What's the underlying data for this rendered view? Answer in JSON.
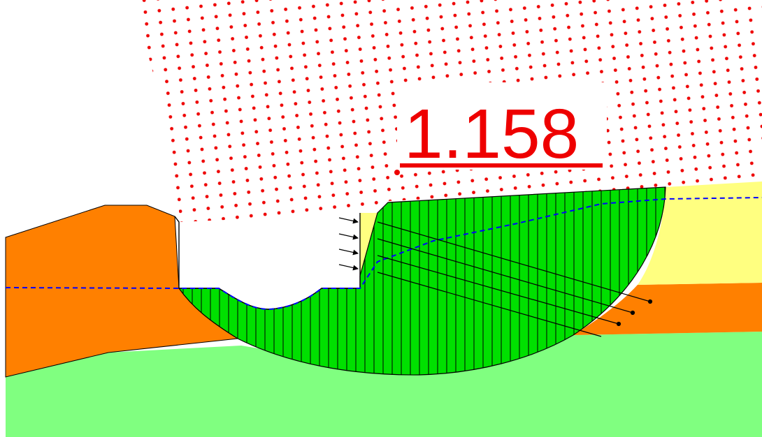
{
  "factor_of_safety": "1.158",
  "colors": {
    "background": "#ffffff",
    "foundation_soil": "#80ff80",
    "orange_layer": "#ff8000",
    "yellow_layer": "#ffff80",
    "slip_mass": "#00e000",
    "water_table": "#0000ff",
    "grid_points": "#ee0000",
    "label": "#ee0000",
    "outline": "#000000"
  },
  "icons": {
    "grid": "red-dot-grid",
    "water_table": "blue-dashed-line",
    "anchors": "arrow-line"
  }
}
